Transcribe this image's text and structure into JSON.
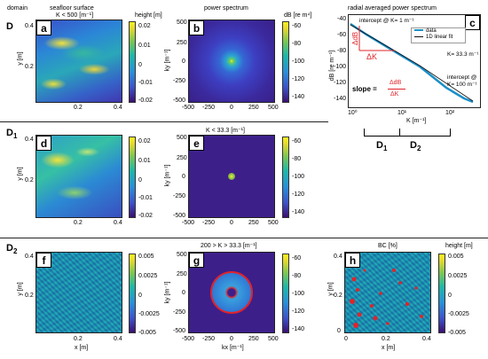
{
  "headers": {
    "domain": "domain",
    "seafloor": "seafloor surface",
    "power": "power spectrum",
    "radial": "radial averaged power spectrum"
  },
  "row1": {
    "label": "D",
    "sub": "",
    "a": {
      "badge": "a",
      "title": "K < 500 [m⁻¹]",
      "ylabel": "y [m]",
      "yticks": [
        "0.4",
        "0.2"
      ],
      "xticks": [
        "0.2",
        "0.4"
      ],
      "cbar_title": "height [m]",
      "cbar_ticks": [
        "0.02",
        "0.01",
        "0",
        "-0.01",
        "-0.02"
      ]
    },
    "b": {
      "badge": "b",
      "title": "",
      "ylabel": "ky [m⁻¹]",
      "yticks": [
        "500",
        "250",
        "0",
        "-250",
        "-500"
      ],
      "xticks": [
        "-500",
        "-250",
        "0",
        "250",
        "500"
      ],
      "cbar_title": "dB [re m⁴]",
      "cbar_ticks": [
        "-60",
        "-80",
        "-100",
        "-120",
        "-140"
      ]
    },
    "c": {
      "badge": "c",
      "ylabel": "dB [re m⁻¹]",
      "yticks": [
        "-40",
        "-60",
        "-80",
        "-100",
        "-120",
        "-140"
      ],
      "xticks": [
        "10⁰",
        "10¹",
        "10²"
      ],
      "xlabel": "K [m⁻¹]",
      "legend": [
        "data",
        "1D linear fit"
      ],
      "ann1": "intercept @ K= 1 m⁻¹",
      "ann2": "K= 33.3 m⁻¹",
      "ann3": "intercept @",
      "ann3b": "K= 100 m⁻¹",
      "slope": "slope =",
      "dB": "ΔdB",
      "dK": "ΔK",
      "d1": "D",
      "d1sub": "1",
      "d2": "D",
      "d2sub": "2"
    }
  },
  "row2": {
    "label": "D",
    "sub": "1",
    "d": {
      "badge": "d",
      "ylabel": "y [m]",
      "yticks": [
        "0.4",
        "0.2"
      ],
      "xticks": [
        "0.2",
        "0.4"
      ],
      "cbar_ticks": [
        "0.02",
        "0.01",
        "0",
        "-0.01",
        "-0.02"
      ]
    },
    "e": {
      "badge": "e",
      "title": "K < 33.3 [m⁻¹]",
      "ylabel": "ky [m⁻¹]",
      "yticks": [
        "500",
        "250",
        "0",
        "-250",
        "-500"
      ],
      "xticks": [
        "-500",
        "-250",
        "0",
        "250",
        "500"
      ],
      "cbar_ticks": [
        "-60",
        "-80",
        "-100",
        "-120",
        "-140"
      ]
    }
  },
  "row3": {
    "label": "D",
    "sub": "2",
    "f": {
      "badge": "f",
      "ylabel": "y [m]",
      "xlabel": "x [m]",
      "yticks": [
        "0.4",
        "0.2"
      ],
      "xticks": [
        "0.2",
        "0.4"
      ],
      "cbar_ticks": [
        "0.005",
        "0.0025",
        "0",
        "-0.0025",
        "-0.005"
      ]
    },
    "g": {
      "badge": "g",
      "title": "200 > K > 33.3 [m⁻¹]",
      "ylabel": "ky [m⁻¹]",
      "xlabel": "kx [m⁻¹]",
      "yticks": [
        "500",
        "250",
        "0",
        "-250",
        "-500"
      ],
      "xticks": [
        "-500",
        "-250",
        "0",
        "250",
        "500"
      ],
      "cbar_ticks": [
        "-60",
        "-80",
        "-100",
        "-120",
        "-140"
      ]
    },
    "h": {
      "badge": "h",
      "title": "BC [%]",
      "ylabel": "y [m]",
      "xlabel": "x [m]",
      "yticks": [
        "0.4",
        "0.2",
        "0"
      ],
      "xticks": [
        "0",
        "0.2",
        "0.4"
      ],
      "cbar_title": "height [m]",
      "cbar_ticks": [
        "0.005",
        "0.0025",
        "0",
        "-0.0025",
        "-0.005"
      ]
    }
  },
  "colors": {
    "accent_red": "#e0242a",
    "data_blue": "#1b8fc9"
  }
}
